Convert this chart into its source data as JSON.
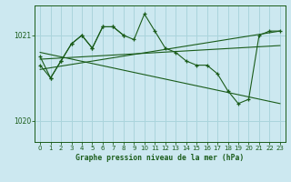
{
  "title": "Graphe pression niveau de la mer (hPa)",
  "bg_color": "#cce8f0",
  "grid_color": "#aad4dc",
  "line_color": "#1a5c1a",
  "text_color": "#1a5c1a",
  "xlim": [
    -0.5,
    23.5
  ],
  "ylim": [
    1019.75,
    1021.35
  ],
  "yticks": [
    1020,
    1021
  ],
  "xticks": [
    0,
    1,
    2,
    3,
    4,
    5,
    6,
    7,
    8,
    9,
    10,
    11,
    12,
    13,
    14,
    15,
    16,
    17,
    18,
    19,
    20,
    21,
    22,
    23
  ],
  "series_main": [
    1020.65,
    1020.5,
    1020.7,
    1020.9,
    1021.0,
    1020.85,
    1021.1,
    1021.1,
    1021.0,
    1020.95,
    1021.25,
    1021.05,
    1020.85,
    1020.8,
    1020.7,
    1020.65,
    1020.65,
    1020.55,
    1020.35,
    1020.2,
    1020.25,
    1021.0,
    1021.05,
    1021.05
  ],
  "series_short_x": [
    0,
    1,
    2,
    3,
    4,
    5,
    6,
    7,
    8
  ],
  "series_short_y": [
    1020.75,
    1020.5,
    1020.7,
    1020.9,
    1021.0,
    1020.85,
    1021.1,
    1021.1,
    1021.0
  ],
  "trend1_x": [
    0,
    23
  ],
  "trend1_y": [
    1020.8,
    1020.2
  ],
  "trend2_x": [
    0,
    23
  ],
  "trend2_y": [
    1020.6,
    1021.05
  ],
  "trend3_x": [
    0,
    23
  ],
  "trend3_y": [
    1020.72,
    1020.88
  ]
}
